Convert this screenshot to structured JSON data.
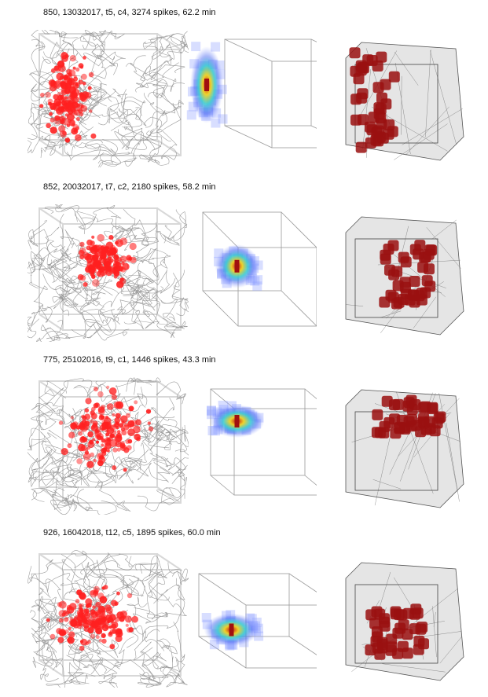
{
  "figure": {
    "rows": [
      {
        "caption": "850, 13032017, t5, c4, 3274 spikes, 62.2 min"
      },
      {
        "caption": "852, 20032017, t7, c2, 2180 spikes, 58.2 min"
      },
      {
        "caption": "775, 25102016, t9, c1, 1446 spikes, 43.3 min"
      },
      {
        "caption": "926, 16042018, t12, c5, 1895 spikes, 60.0 min"
      }
    ],
    "colors": {
      "trajectory": "#8a8a8a",
      "spike": "#ff2020",
      "hull_fill": "#cfcfcf",
      "blob": "#9a1010"
    }
  }
}
